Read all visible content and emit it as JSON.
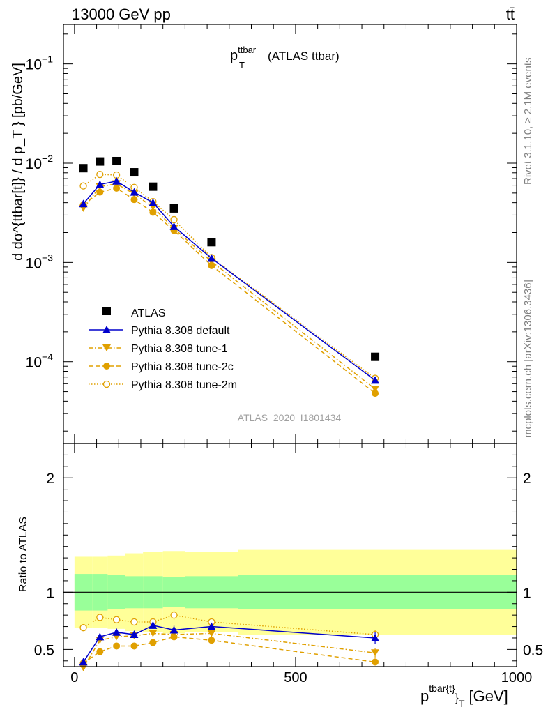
{
  "header": {
    "energy_label": "13000 GeV pp",
    "process_label": "tt̄",
    "plot_title_main": "p",
    "plot_title_sup": "ttbar",
    "plot_title_sub": "T",
    "plot_title_rest": "(ATLAS ttbar)"
  },
  "side_text": {
    "rivet": "Rivet 3.1.10, ≥ 2.1M events",
    "mcplots": "mcplots.cern.ch [arXiv:1306.3436]"
  },
  "watermark": "ATLAS_2020_I1801434",
  "axes": {
    "ylabel_main": "d dσ^{ttbar[t]} / d p_T } [pb/GeV]",
    "ylabel_ratio": "Ratio to ATLAS",
    "xlabel_main": "p",
    "xlabel_sup": "tbar{t}",
    "xlabel_rest": "}",
    "xlabel_sub": "T",
    "xlabel_unit": "[GeV]",
    "main_yticks": [
      {
        "value": 0.1,
        "base": "10",
        "exp": "−1"
      },
      {
        "value": 0.01,
        "base": "10",
        "exp": "−2"
      },
      {
        "value": 0.001,
        "base": "10",
        "exp": "−3"
      },
      {
        "value": 0.0001,
        "base": "10",
        "exp": "−4"
      }
    ],
    "ratio_yticks": [
      "2",
      "1",
      "0.5"
    ],
    "xticks": [
      "0",
      "500",
      "1000"
    ]
  },
  "legend": {
    "atlas": "ATLAS",
    "default": "Pythia 8.308 default",
    "tune1": "Pythia 8.308 tune-1",
    "tune2c": "Pythia 8.308 tune-2c",
    "tune2m": "Pythia 8.308 tune-2m"
  },
  "colors": {
    "atlas": "#000000",
    "default": "#0000cc",
    "tunes": "#e0a000",
    "band_inner": "#99ff99",
    "band_outer": "#ffff99"
  },
  "chart_data": {
    "type": "scatter",
    "log_y_main": true,
    "xlim": [
      -25,
      1000
    ],
    "ylim_main": [
      1.5e-05,
      0.25
    ],
    "ylim_ratio": [
      0.35,
      2.3
    ],
    "x": [
      20,
      57.5,
      95,
      135,
      177.5,
      225,
      310,
      680
    ],
    "bin_edges": [
      0,
      40,
      75,
      115,
      155,
      200,
      250,
      370,
      1000
    ],
    "series": [
      {
        "name": "ATLAS",
        "key": "atlas",
        "values": [
          0.0089,
          0.0104,
          0.0105,
          0.0081,
          0.0058,
          0.0035,
          0.0016,
          0.000112
        ],
        "ratio": [
          1,
          1,
          1,
          1,
          1,
          1,
          1,
          1
        ]
      },
      {
        "name": "Pythia 8.308 default",
        "key": "default",
        "values": [
          0.0039,
          0.0061,
          0.0066,
          0.0051,
          0.004,
          0.0023,
          0.0011,
          6.5e-05
        ],
        "ratio": [
          0.39,
          0.61,
          0.65,
          0.63,
          0.71,
          0.67,
          0.7,
          0.6
        ],
        "ratio_err": [
          0.02,
          0.02,
          0.02,
          0.03,
          0.03,
          0.04,
          0.03,
          0.05
        ]
      },
      {
        "name": "Pythia 8.308 tune-1",
        "key": "tune1",
        "values": [
          0.0035,
          0.0058,
          0.0062,
          0.0049,
          0.0036,
          0.0022,
          0.00102,
          5.3e-05
        ],
        "ratio": [
          0.34,
          0.58,
          0.61,
          0.62,
          0.64,
          0.63,
          0.64,
          0.47
        ],
        "ratio_err": [
          0.02,
          0.02,
          0.02,
          0.03,
          0.03,
          0.03,
          0.03,
          0.04
        ]
      },
      {
        "name": "Pythia 8.308 tune-2c",
        "key": "tune2c",
        "values": [
          0.0038,
          0.0051,
          0.0056,
          0.0043,
          0.0032,
          0.0021,
          0.00093,
          4.8e-05
        ],
        "ratio": [
          0.38,
          0.48,
          0.53,
          0.53,
          0.56,
          0.61,
          0.58,
          0.39
        ],
        "ratio_err": [
          0.02,
          0.02,
          0.02,
          0.02,
          0.03,
          0.03,
          0.03,
          0.03
        ]
      },
      {
        "name": "Pythia 8.308 tune-2m",
        "key": "tune2m",
        "values": [
          0.0059,
          0.0077,
          0.0076,
          0.0057,
          0.0041,
          0.0027,
          0.00112,
          6.8e-05
        ],
        "ratio": [
          0.69,
          0.78,
          0.76,
          0.74,
          0.74,
          0.8,
          0.74,
          0.63
        ],
        "ratio_err": [
          0.02,
          0.02,
          0.02,
          0.02,
          0.03,
          0.04,
          0.03,
          0.04
        ]
      }
    ],
    "band_inner_half": [
      0.16,
      0.16,
      0.15,
      0.14,
      0.14,
      0.13,
      0.14,
      0.15
    ],
    "band_outer_half": [
      0.31,
      0.31,
      0.32,
      0.34,
      0.35,
      0.36,
      0.35,
      0.37
    ]
  }
}
